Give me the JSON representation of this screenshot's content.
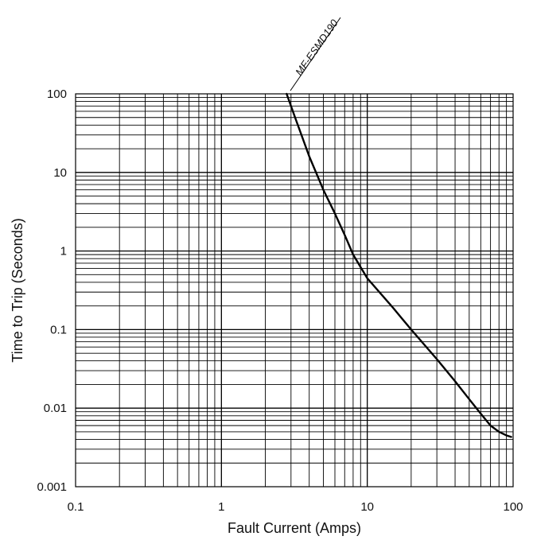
{
  "chart_data": {
    "type": "line",
    "title": "",
    "xlabel": "Fault Current  (Amps)",
    "ylabel": "Time to Trip (Seconds)",
    "x_scale": "log",
    "y_scale": "log",
    "xlim": [
      0.1,
      100
    ],
    "ylim": [
      0.001,
      100
    ],
    "grid": true,
    "x_ticks": [
      "0.1",
      "1",
      "10",
      "100"
    ],
    "y_ticks": [
      "0.001",
      "0.01",
      "0.1",
      "1",
      "10",
      "100"
    ],
    "series": [
      {
        "name": "MF-ESMD190",
        "x": [
          2.8,
          3.2,
          4,
          5,
          6,
          7,
          8,
          10,
          15,
          20,
          30,
          40,
          50,
          60,
          70,
          80,
          90,
          97
        ],
        "y": [
          100,
          50,
          16,
          6,
          3,
          1.6,
          0.9,
          0.45,
          0.19,
          0.1,
          0.042,
          0.022,
          0.013,
          0.0085,
          0.006,
          0.005,
          0.0045,
          0.0043
        ]
      }
    ],
    "colors": {
      "grid": "#000000",
      "curve": "#000000"
    }
  }
}
